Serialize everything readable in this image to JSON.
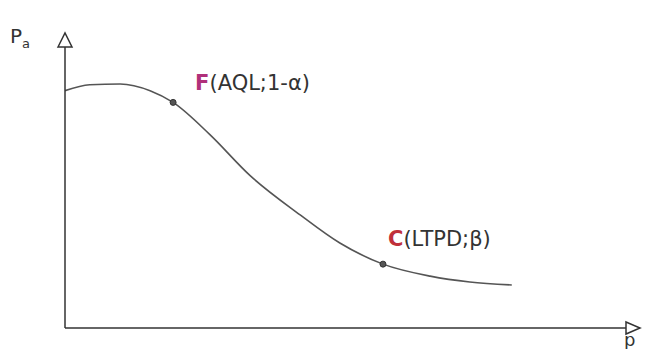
{
  "chart_data": {
    "type": "line",
    "xlabel": "p",
    "ylabel": "Pa",
    "x": [
      0,
      0.043,
      0.096,
      0.148,
      0.188,
      0.252,
      0.322,
      0.409,
      0.478,
      0.553,
      0.635,
      0.704,
      0.777
    ],
    "values": [
      0.81,
      0.83,
      0.833,
      0.81,
      0.77,
      0.66,
      0.52,
      0.386,
      0.29,
      0.218,
      0.177,
      0.157,
      0.147
    ],
    "color": "#555555",
    "xlim": [
      0,
      1
    ],
    "ylim": [
      0,
      1
    ],
    "xticks": [],
    "yticks": [],
    "tick_labels": false,
    "annotations": [
      {
        "text": "F(AQL;1-α)",
        "x": 0.188,
        "y": 0.77,
        "color": "#b0307a"
      },
      {
        "text": "C(LTPD;β)",
        "x": 0.553,
        "y": 0.218,
        "color": "#c0303a"
      }
    ]
  }
}
